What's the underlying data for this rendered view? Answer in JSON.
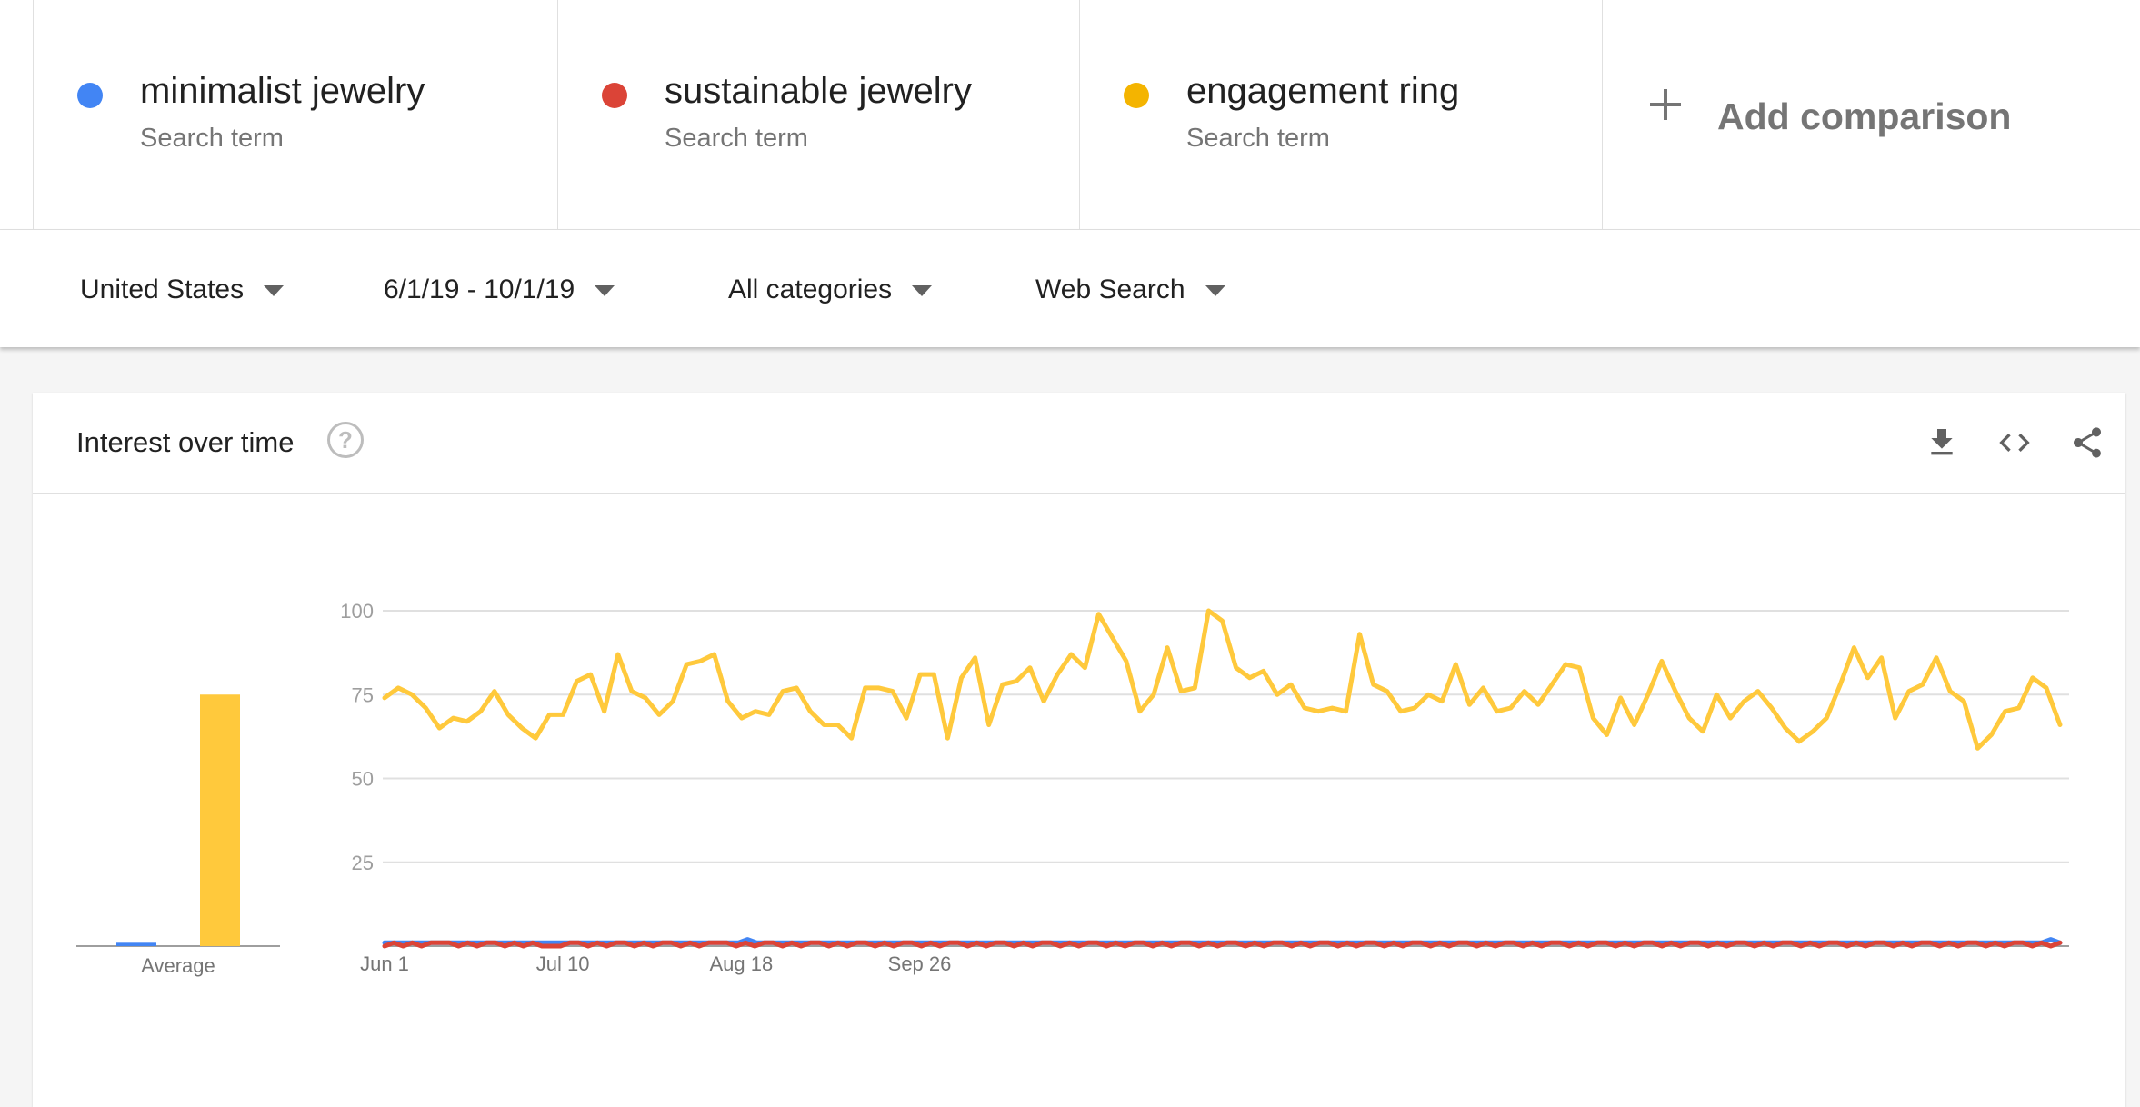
{
  "comparison": {
    "terms": [
      {
        "name": "minimalist jewelry",
        "type": "Search term",
        "color": "#4285f4"
      },
      {
        "name": "sustainable jewelry",
        "type": "Search term",
        "color": "#db4437"
      },
      {
        "name": "engagement ring",
        "type": "Search term",
        "color": "#f4b400"
      }
    ],
    "add_label": "Add comparison"
  },
  "filters": {
    "region": "United States",
    "date_range": "6/1/19 - 10/1/19",
    "category": "All categories",
    "search_type": "Web Search"
  },
  "card": {
    "title": "Interest over time",
    "help_icon": "help-circle-icon",
    "actions": [
      "download-icon",
      "embed-code-icon",
      "share-icon"
    ]
  },
  "chart_data": {
    "type": "line",
    "title": "Interest over time",
    "x_range": [
      "2019-06-01",
      "2019-10-01"
    ],
    "x_tick_labels": [
      "Jun 1",
      "Jul 10",
      "Aug 18",
      "Sep 26"
    ],
    "y_ticks": [
      25,
      50,
      75,
      100
    ],
    "ylim": [
      0,
      100
    ],
    "grid": true,
    "average_label": "Average",
    "series": [
      {
        "name": "minimalist jewelry",
        "color": "#4285f4",
        "average": 1,
        "values": [
          1,
          1,
          1,
          1,
          1,
          1,
          1,
          1,
          1,
          1,
          1,
          1,
          1,
          1,
          1,
          1,
          1,
          1,
          1,
          1,
          1,
          1,
          1,
          1,
          1,
          1,
          1,
          1,
          1,
          1,
          1,
          1,
          1,
          1,
          1,
          1,
          1,
          1,
          1,
          2,
          1,
          1,
          1,
          1,
          1,
          1,
          1,
          1,
          1,
          1,
          1,
          1,
          1,
          1,
          1,
          1,
          1,
          1,
          1,
          1,
          1,
          1,
          1,
          1,
          1,
          1,
          1,
          1,
          1,
          1,
          1,
          1,
          1,
          1,
          1,
          1,
          1,
          1,
          1,
          1,
          1,
          1,
          1,
          1,
          1,
          1,
          1,
          1,
          1,
          1,
          1,
          1,
          1,
          1,
          1,
          1,
          1,
          1,
          1,
          1,
          1,
          1,
          1,
          1,
          1,
          1,
          1,
          1,
          1,
          1,
          1,
          1,
          1,
          1,
          1,
          1,
          1,
          1,
          1,
          1,
          1,
          1,
          1,
          1,
          1,
          1,
          1,
          1,
          1,
          1,
          1,
          1,
          1,
          1,
          1,
          1,
          1,
          1,
          1,
          1,
          1,
          1,
          1,
          1,
          1,
          1,
          1,
          1,
          1,
          1,
          1,
          1,
          1,
          1,
          1,
          1,
          1,
          1,
          1,
          1,
          1,
          1,
          1,
          1,
          1,
          1,
          1,
          1,
          1,
          1,
          1,
          1,
          1,
          1,
          1,
          1,
          1,
          1,
          1,
          2,
          1
        ]
      },
      {
        "name": "sustainable jewelry",
        "color": "#db4437",
        "average": 0,
        "values": [
          0,
          1,
          0,
          1,
          0,
          1,
          1,
          1,
          0,
          1,
          0,
          1,
          1,
          0,
          1,
          0,
          1,
          0,
          0,
          0,
          1,
          1,
          0,
          1,
          0,
          1,
          1,
          0,
          1,
          0,
          1,
          1,
          0,
          1,
          0,
          1,
          1,
          1,
          0,
          1,
          0,
          1,
          1,
          0,
          1,
          0,
          1,
          1,
          0,
          1,
          0,
          1,
          1,
          0,
          1,
          0,
          1,
          1,
          0,
          1,
          0,
          1,
          1,
          0,
          1,
          0,
          1,
          1,
          0,
          1,
          0,
          1,
          1,
          0,
          1,
          0,
          1,
          1,
          0,
          1,
          0,
          1,
          1,
          0,
          1,
          0,
          1,
          1,
          0,
          1,
          0,
          1,
          1,
          0,
          1,
          0,
          1,
          1,
          0,
          1,
          0,
          1,
          1,
          0,
          1,
          0,
          1,
          1,
          0,
          1,
          0,
          1,
          1,
          0,
          1,
          0,
          1,
          1,
          0,
          1,
          0,
          1,
          1,
          0,
          1,
          0,
          1,
          1,
          0,
          1,
          0,
          1,
          1,
          0,
          1,
          0,
          1,
          1,
          0,
          1,
          0,
          1,
          1,
          0,
          1,
          0,
          1,
          1,
          0,
          1,
          0,
          1,
          1,
          0,
          1,
          0,
          1,
          1,
          0,
          1,
          0,
          1,
          1,
          0,
          1,
          0,
          1,
          1,
          0,
          1,
          0,
          1,
          1,
          0,
          1,
          0,
          1,
          1,
          0,
          1,
          0,
          1
        ]
      },
      {
        "name": "engagement ring",
        "color": "#ffc93c",
        "average": 75,
        "values": [
          74,
          77,
          75,
          71,
          65,
          68,
          67,
          70,
          76,
          69,
          65,
          62,
          69,
          69,
          79,
          81,
          70,
          87,
          76,
          74,
          69,
          73,
          84,
          85,
          87,
          73,
          68,
          70,
          69,
          76,
          77,
          70,
          66,
          66,
          62,
          77,
          77,
          76,
          68,
          81,
          81,
          62,
          80,
          86,
          66,
          78,
          79,
          83,
          73,
          81,
          87,
          83,
          99,
          92,
          85,
          70,
          75,
          89,
          76,
          77,
          100,
          97,
          83,
          80,
          82,
          75,
          78,
          71,
          70,
          71,
          70,
          93,
          78,
          76,
          70,
          71,
          75,
          73,
          84,
          72,
          77,
          70,
          71,
          76,
          72,
          78,
          84,
          83,
          68,
          63,
          74,
          66,
          75,
          85,
          76,
          68,
          64,
          75,
          68,
          73,
          76,
          71,
          65,
          61,
          64,
          68,
          78,
          89,
          80,
          86,
          68,
          76,
          78,
          86,
          76,
          73,
          59,
          63,
          70,
          71,
          80,
          77,
          66
        ]
      }
    ]
  }
}
